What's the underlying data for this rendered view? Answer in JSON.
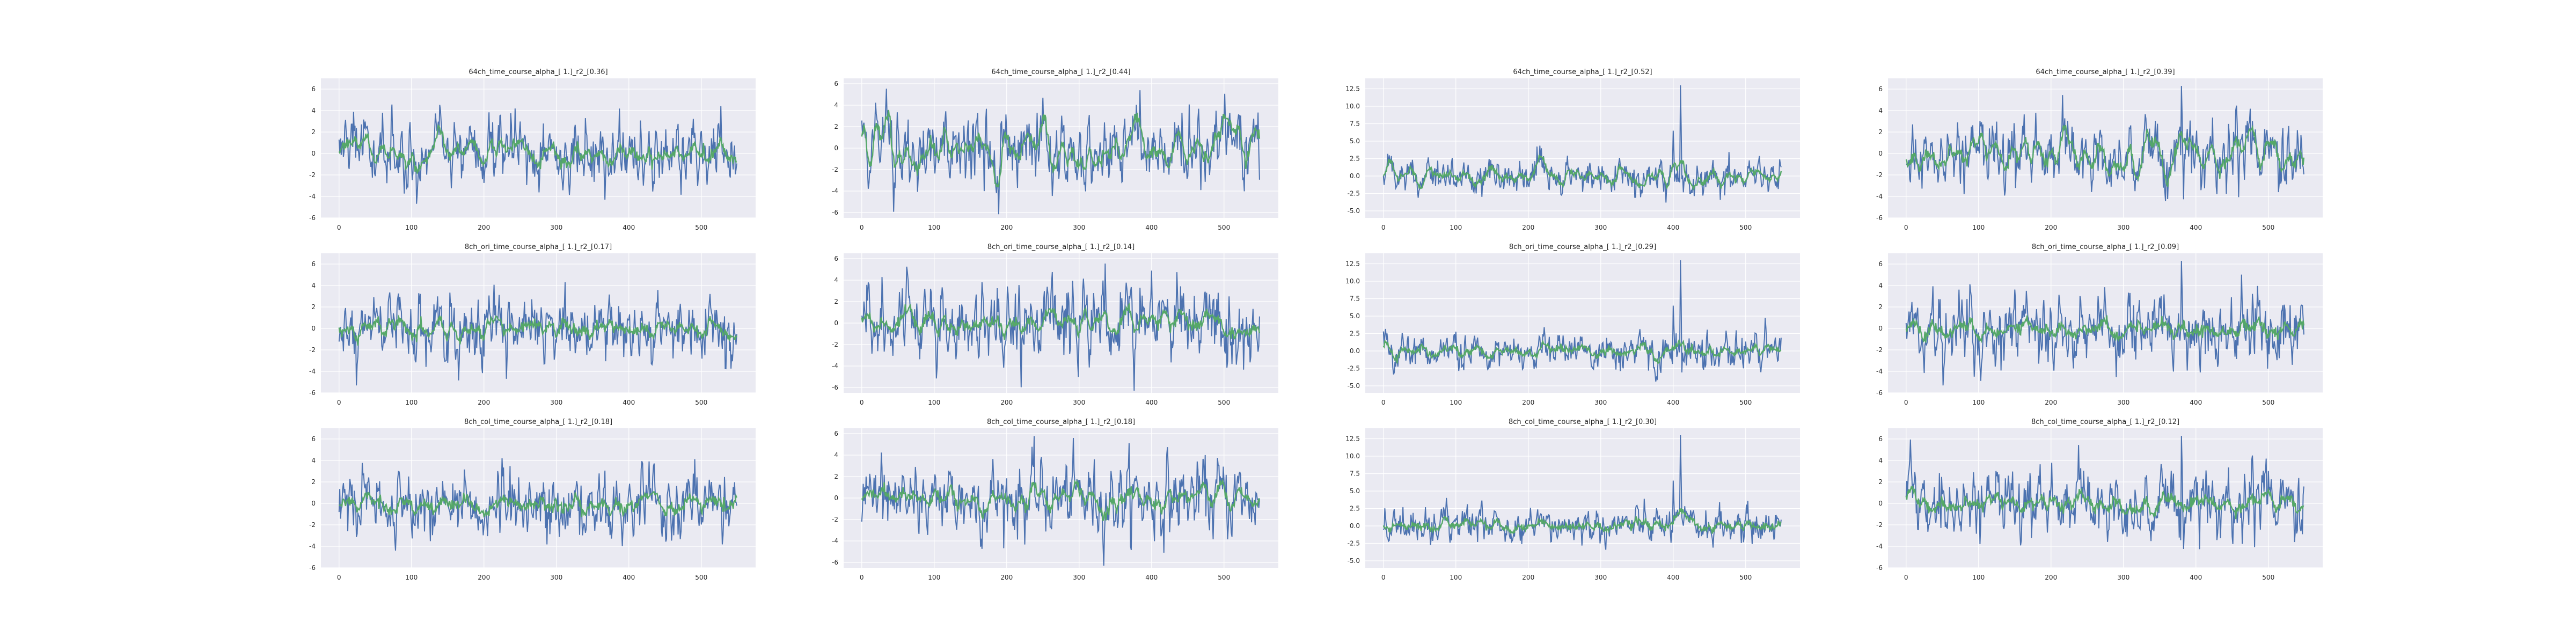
{
  "chart_data": [
    {
      "type": "line",
      "title": "64ch_time_course_alpha_[ 1.]_r2_[0.36]",
      "ylim": [
        -6,
        7
      ],
      "yticks": [
        -6,
        -4,
        -2,
        0,
        2,
        4,
        6
      ],
      "xlim": [
        -25,
        575
      ],
      "xticks": [
        0,
        100,
        200,
        300,
        400,
        500
      ],
      "n": 550,
      "ref_amp": 1.6,
      "fit_amp": 0.65,
      "spikes": [],
      "seed": 1,
      "grid": true
    },
    {
      "type": "line",
      "title": "64ch_time_course_alpha_[ 1.]_r2_[0.44]",
      "ylim": [
        -6.5,
        6.5
      ],
      "yticks": [
        -6,
        -4,
        -2,
        0,
        2,
        4,
        6
      ],
      "xlim": [
        -25,
        575
      ],
      "xticks": [
        0,
        100,
        200,
        300,
        400,
        500
      ],
      "n": 550,
      "ref_amp": 1.8,
      "fit_amp": 1.0,
      "spikes": [],
      "seed": 2,
      "grid": true
    },
    {
      "type": "line",
      "title": "64ch_time_course_alpha_[ 1.]_r2_[0.52]",
      "ylim": [
        -6,
        14
      ],
      "yticks": [
        -5.0,
        -2.5,
        0.0,
        2.5,
        5.0,
        7.5,
        10.0,
        12.5
      ],
      "xlim": [
        -25,
        575
      ],
      "xticks": [
        0,
        100,
        200,
        300,
        400,
        500
      ],
      "n": 550,
      "ref_amp": 1.3,
      "fit_amp": 0.9,
      "spikes": [
        [
          410,
          13.0
        ],
        [
          400,
          6.5
        ]
      ],
      "seed": 3,
      "grid": true
    },
    {
      "type": "line",
      "title": "64ch_time_course_alpha_[ 1.]_r2_[0.39]",
      "ylim": [
        -6,
        7
      ],
      "yticks": [
        -6,
        -4,
        -2,
        0,
        2,
        4,
        6
      ],
      "xlim": [
        -25,
        575
      ],
      "xticks": [
        0,
        100,
        200,
        300,
        400,
        500
      ],
      "n": 550,
      "ref_amp": 1.7,
      "fit_amp": 0.9,
      "spikes": [
        [
          380,
          6.3
        ]
      ],
      "seed": 4,
      "grid": true
    },
    {
      "type": "line",
      "title": "8ch_ori_time_course_alpha_[ 1.]_r2_[0.17]",
      "ylim": [
        -6,
        7
      ],
      "yticks": [
        -6,
        -4,
        -2,
        0,
        2,
        4,
        6
      ],
      "xlim": [
        -25,
        575
      ],
      "xticks": [
        0,
        100,
        200,
        300,
        400,
        500
      ],
      "n": 550,
      "ref_amp": 1.6,
      "fit_amp": 0.45,
      "spikes": [],
      "seed": 5,
      "grid": true
    },
    {
      "type": "line",
      "title": "8ch_ori_time_course_alpha_[ 1.]_r2_[0.14]",
      "ylim": [
        -6.5,
        6.5
      ],
      "yticks": [
        -6,
        -4,
        -2,
        0,
        2,
        4,
        6
      ],
      "xlim": [
        -25,
        575
      ],
      "xticks": [
        0,
        100,
        200,
        300,
        400,
        500
      ],
      "n": 550,
      "ref_amp": 1.8,
      "fit_amp": 0.5,
      "spikes": [],
      "seed": 6,
      "grid": true
    },
    {
      "type": "line",
      "title": "8ch_ori_time_course_alpha_[ 1.]_r2_[0.29]",
      "ylim": [
        -6,
        14
      ],
      "yticks": [
        -5.0,
        -2.5,
        0.0,
        2.5,
        5.0,
        7.5,
        10.0,
        12.5
      ],
      "xlim": [
        -25,
        575
      ],
      "xticks": [
        0,
        100,
        200,
        300,
        400,
        500
      ],
      "n": 550,
      "ref_amp": 1.3,
      "fit_amp": 0.5,
      "spikes": [
        [
          410,
          13.0
        ],
        [
          400,
          6.5
        ]
      ],
      "seed": 7,
      "grid": true
    },
    {
      "type": "line",
      "title": "8ch_ori_time_course_alpha_[ 1.]_r2_[0.09]",
      "ylim": [
        -6,
        7
      ],
      "yticks": [
        -6,
        -4,
        -2,
        0,
        2,
        4,
        6
      ],
      "xlim": [
        -25,
        575
      ],
      "xticks": [
        0,
        100,
        200,
        300,
        400,
        500
      ],
      "n": 550,
      "ref_amp": 1.7,
      "fit_amp": 0.35,
      "spikes": [
        [
          380,
          6.3
        ]
      ],
      "seed": 8,
      "grid": true
    },
    {
      "type": "line",
      "title": "8ch_col_time_course_alpha_[ 1.]_r2_[0.18]",
      "ylim": [
        -6,
        7
      ],
      "yticks": [
        -6,
        -4,
        -2,
        0,
        2,
        4,
        6
      ],
      "xlim": [
        -25,
        575
      ],
      "xticks": [
        0,
        100,
        200,
        300,
        400,
        500
      ],
      "n": 550,
      "ref_amp": 1.6,
      "fit_amp": 0.45,
      "spikes": [],
      "seed": 9,
      "grid": true
    },
    {
      "type": "line",
      "title": "8ch_col_time_course_alpha_[ 1.]_r2_[0.18]",
      "ylim": [
        -6.5,
        6.5
      ],
      "yticks": [
        -6,
        -4,
        -2,
        0,
        2,
        4,
        6
      ],
      "xlim": [
        -25,
        575
      ],
      "xticks": [
        0,
        100,
        200,
        300,
        400,
        500
      ],
      "n": 550,
      "ref_amp": 1.8,
      "fit_amp": 0.55,
      "spikes": [],
      "seed": 10,
      "grid": true
    },
    {
      "type": "line",
      "title": "8ch_col_time_course_alpha_[ 1.]_r2_[0.30]",
      "ylim": [
        -6,
        14
      ],
      "yticks": [
        -5.0,
        -2.5,
        0.0,
        2.5,
        5.0,
        7.5,
        10.0,
        12.5
      ],
      "xlim": [
        -25,
        575
      ],
      "xticks": [
        0,
        100,
        200,
        300,
        400,
        500
      ],
      "n": 550,
      "ref_amp": 1.3,
      "fit_amp": 0.5,
      "spikes": [
        [
          410,
          13.0
        ],
        [
          400,
          6.5
        ]
      ],
      "seed": 11,
      "grid": true
    },
    {
      "type": "line",
      "title": "8ch_col_time_course_alpha_[ 1.]_r2_[0.12]",
      "ylim": [
        -6,
        7
      ],
      "yticks": [
        -6,
        -4,
        -2,
        0,
        2,
        4,
        6
      ],
      "xlim": [
        -25,
        575
      ],
      "xticks": [
        0,
        100,
        200,
        300,
        400,
        500
      ],
      "n": 550,
      "ref_amp": 1.7,
      "fit_amp": 0.4,
      "spikes": [
        [
          380,
          6.3
        ]
      ],
      "seed": 12,
      "grid": true
    }
  ],
  "colors": {
    "reference_series": "#4c72b0",
    "fit_series": "#55a868",
    "background": "#eaeaf2",
    "grid": "#ffffff"
  }
}
